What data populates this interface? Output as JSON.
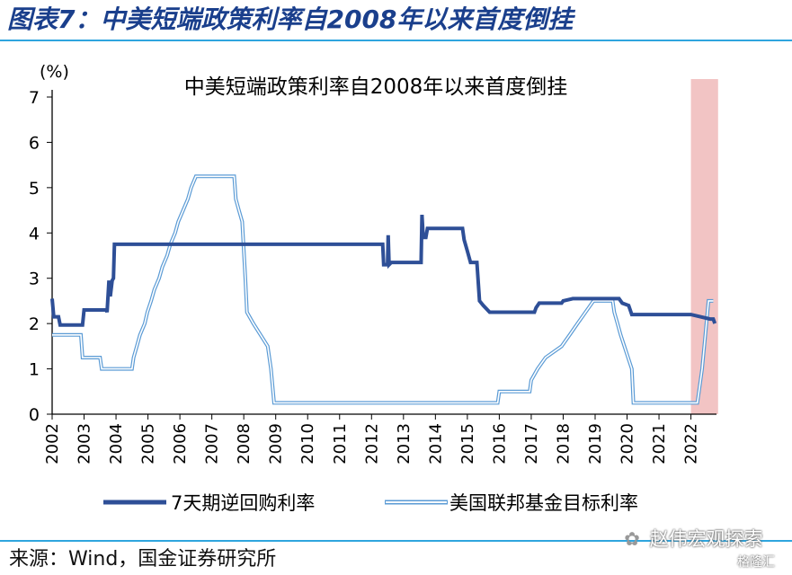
{
  "figure": {
    "title": "图表7：中美短端政策利率自2008年以来首度倒挂",
    "source": "来源：Wind，国金证券研究所",
    "watermark": "赵伟宏观探索",
    "watermark_icon": "wechat-icon",
    "watermark2": "格隆汇"
  },
  "colors": {
    "title": "#1a3f8c",
    "rule": "#2fa5de",
    "series_china": "#2e4f97",
    "series_us_outer": "#5b9bd5",
    "series_us_inner": "#ffffff",
    "highlight": "#f2c4c4"
  },
  "chart_data": {
    "type": "line",
    "title": "中美短端政策利率自2008年以来首度倒挂",
    "ylabel": "(%)",
    "xlabel": "",
    "xlim": [
      2002,
      2022.8
    ],
    "ylim": [
      0,
      7
    ],
    "yticks": [
      "0",
      "1",
      "2",
      "3",
      "4",
      "5",
      "6",
      "7"
    ],
    "xticks": [
      "2002",
      "2003",
      "2004",
      "2005",
      "2006",
      "2007",
      "2008",
      "2009",
      "2010",
      "2011",
      "2012",
      "2013",
      "2014",
      "2015",
      "2016",
      "2017",
      "2018",
      "2019",
      "2020",
      "2021",
      "2022"
    ],
    "grid": false,
    "legend_position": "bottom",
    "highlight_region": [
      2022.0,
      2022.85
    ],
    "series": [
      {
        "name": "7天期逆回购利率",
        "style": "solid-dark",
        "points": [
          [
            2002.0,
            2.55
          ],
          [
            2002.05,
            2.15
          ],
          [
            2002.2,
            2.15
          ],
          [
            2002.25,
            1.97
          ],
          [
            2002.95,
            1.97
          ],
          [
            2003.0,
            2.3
          ],
          [
            2003.7,
            2.3
          ],
          [
            2003.72,
            2.25
          ],
          [
            2003.78,
            2.95
          ],
          [
            2003.82,
            2.6
          ],
          [
            2003.88,
            2.95
          ],
          [
            2003.92,
            3.0
          ],
          [
            2003.95,
            3.75
          ],
          [
            2012.35,
            3.75
          ],
          [
            2012.38,
            3.3
          ],
          [
            2012.5,
            3.3
          ],
          [
            2012.52,
            3.95
          ],
          [
            2012.55,
            3.3
          ],
          [
            2012.62,
            3.35
          ],
          [
            2013.55,
            3.35
          ],
          [
            2013.58,
            4.4
          ],
          [
            2013.62,
            3.9
          ],
          [
            2013.7,
            3.9
          ],
          [
            2013.75,
            4.1
          ],
          [
            2014.85,
            4.1
          ],
          [
            2014.9,
            3.85
          ],
          [
            2015.0,
            3.6
          ],
          [
            2015.1,
            3.35
          ],
          [
            2015.3,
            3.35
          ],
          [
            2015.38,
            2.5
          ],
          [
            2015.5,
            2.4
          ],
          [
            2015.7,
            2.25
          ],
          [
            2017.1,
            2.25
          ],
          [
            2017.15,
            2.35
          ],
          [
            2017.25,
            2.45
          ],
          [
            2017.95,
            2.45
          ],
          [
            2018.0,
            2.5
          ],
          [
            2018.3,
            2.55
          ],
          [
            2019.75,
            2.55
          ],
          [
            2019.85,
            2.45
          ],
          [
            2020.05,
            2.4
          ],
          [
            2020.15,
            2.2
          ],
          [
            2022.0,
            2.2
          ],
          [
            2022.6,
            2.1
          ],
          [
            2022.7,
            2.1
          ],
          [
            2022.75,
            2.0
          ]
        ]
      },
      {
        "name": "美国联邦基金目标利率",
        "style": "double-light",
        "points": [
          [
            2002.0,
            1.75
          ],
          [
            2002.9,
            1.75
          ],
          [
            2002.95,
            1.25
          ],
          [
            2003.5,
            1.25
          ],
          [
            2003.55,
            1.0
          ],
          [
            2004.5,
            1.0
          ],
          [
            2004.55,
            1.25
          ],
          [
            2004.65,
            1.5
          ],
          [
            2004.75,
            1.75
          ],
          [
            2004.9,
            2.0
          ],
          [
            2004.98,
            2.25
          ],
          [
            2005.1,
            2.5
          ],
          [
            2005.2,
            2.75
          ],
          [
            2005.35,
            3.0
          ],
          [
            2005.45,
            3.25
          ],
          [
            2005.6,
            3.5
          ],
          [
            2005.7,
            3.75
          ],
          [
            2005.85,
            4.0
          ],
          [
            2005.95,
            4.25
          ],
          [
            2006.1,
            4.5
          ],
          [
            2006.25,
            4.75
          ],
          [
            2006.35,
            5.0
          ],
          [
            2006.5,
            5.25
          ],
          [
            2007.7,
            5.25
          ],
          [
            2007.75,
            4.75
          ],
          [
            2007.85,
            4.5
          ],
          [
            2007.95,
            4.25
          ],
          [
            2008.05,
            3.0
          ],
          [
            2008.1,
            2.25
          ],
          [
            2008.3,
            2.0
          ],
          [
            2008.75,
            1.5
          ],
          [
            2008.85,
            1.0
          ],
          [
            2008.95,
            0.25
          ],
          [
            2015.95,
            0.25
          ],
          [
            2016.0,
            0.5
          ],
          [
            2016.95,
            0.5
          ],
          [
            2017.0,
            0.75
          ],
          [
            2017.2,
            1.0
          ],
          [
            2017.45,
            1.25
          ],
          [
            2017.95,
            1.5
          ],
          [
            2018.2,
            1.75
          ],
          [
            2018.45,
            2.0
          ],
          [
            2018.7,
            2.25
          ],
          [
            2018.95,
            2.5
          ],
          [
            2019.55,
            2.5
          ],
          [
            2019.6,
            2.25
          ],
          [
            2019.7,
            2.0
          ],
          [
            2019.8,
            1.75
          ],
          [
            2020.15,
            1.0
          ],
          [
            2020.2,
            0.25
          ],
          [
            2022.2,
            0.25
          ],
          [
            2022.25,
            0.5
          ],
          [
            2022.35,
            1.0
          ],
          [
            2022.45,
            1.75
          ],
          [
            2022.55,
            2.5
          ],
          [
            2022.7,
            2.5
          ]
        ]
      }
    ]
  }
}
